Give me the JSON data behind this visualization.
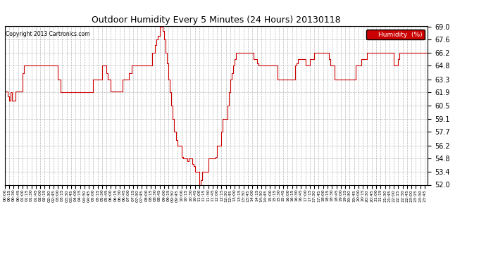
{
  "title": "Outdoor Humidity Every 5 Minutes (24 Hours) 20130118",
  "copyright": "Copyright 2013 Cartronics.com",
  "legend_label": "Humidity  (%)",
  "legend_bg": "#cc0000",
  "legend_text_color": "#ffffff",
  "line_color": "#cc0000",
  "bg_color": "#ffffff",
  "grid_color": "#b0b0b0",
  "ylim": [
    52.0,
    69.0
  ],
  "yticks": [
    52.0,
    53.4,
    54.8,
    56.2,
    57.7,
    59.1,
    60.5,
    61.9,
    63.3,
    64.8,
    66.2,
    67.6,
    69.0
  ],
  "humidity_data": [
    62.0,
    62.0,
    61.5,
    61.0,
    61.9,
    61.0,
    61.0,
    62.0,
    62.0,
    62.0,
    62.0,
    62.0,
    64.0,
    64.8,
    64.8,
    64.8,
    64.8,
    64.8,
    64.8,
    64.8,
    64.8,
    64.8,
    64.8,
    64.8,
    64.8,
    64.8,
    64.8,
    64.8,
    64.8,
    64.8,
    64.8,
    64.8,
    64.8,
    64.8,
    64.8,
    64.8,
    63.3,
    63.3,
    61.9,
    61.9,
    61.9,
    61.9,
    61.9,
    61.9,
    61.9,
    61.9,
    61.9,
    61.9,
    61.9,
    61.9,
    61.9,
    61.9,
    61.9,
    61.9,
    61.9,
    61.9,
    61.9,
    61.9,
    61.9,
    61.9,
    63.3,
    63.3,
    63.3,
    63.3,
    63.3,
    63.3,
    64.8,
    64.8,
    64.8,
    64.0,
    63.3,
    63.3,
    62.0,
    62.0,
    62.0,
    62.0,
    62.0,
    62.0,
    62.0,
    62.0,
    63.3,
    63.3,
    63.3,
    63.3,
    64.0,
    64.0,
    64.8,
    64.8,
    64.8,
    64.8,
    64.8,
    64.8,
    64.8,
    64.8,
    64.8,
    64.8,
    64.8,
    64.8,
    64.8,
    64.8,
    66.2,
    66.2,
    67.0,
    67.6,
    68.0,
    69.0,
    69.0,
    68.5,
    67.6,
    66.2,
    65.0,
    63.3,
    61.9,
    60.5,
    59.1,
    57.7,
    56.8,
    56.2,
    56.2,
    56.2,
    55.0,
    54.8,
    54.8,
    54.8,
    54.5,
    54.8,
    54.8,
    54.2,
    54.0,
    53.4,
    53.4,
    53.4,
    52.0,
    52.5,
    53.4,
    53.4,
    53.4,
    53.4,
    54.8,
    54.8,
    54.8,
    54.8,
    54.8,
    55.0,
    56.2,
    56.2,
    56.2,
    57.7,
    59.1,
    59.1,
    59.1,
    60.5,
    61.9,
    63.3,
    64.0,
    64.8,
    65.5,
    66.2,
    66.2,
    66.2,
    66.2,
    66.2,
    66.2,
    66.2,
    66.2,
    66.2,
    66.2,
    66.2,
    66.2,
    65.5,
    65.5,
    65.0,
    64.8,
    64.8,
    64.8,
    64.8,
    64.8,
    64.8,
    64.8,
    64.8,
    64.8,
    64.8,
    64.8,
    64.8,
    64.8,
    63.3,
    63.3,
    63.3,
    63.3,
    63.3,
    63.3,
    63.3,
    63.3,
    63.3,
    63.3,
    63.3,
    63.3,
    64.8,
    65.0,
    65.5,
    65.5,
    65.5,
    65.5,
    65.5,
    64.8,
    64.8,
    64.8,
    65.5,
    65.5,
    65.5,
    66.2,
    66.2,
    66.2,
    66.2,
    66.2,
    66.2,
    66.2,
    66.2,
    66.2,
    66.2,
    65.5,
    64.8,
    64.8,
    64.8,
    63.3,
    63.3,
    63.3,
    63.3,
    63.3,
    63.3,
    63.3,
    63.3,
    63.3,
    63.3,
    63.3,
    63.3,
    63.3,
    63.3,
    64.8,
    64.8,
    64.8,
    64.8,
    65.5,
    65.5,
    65.5,
    65.5,
    66.2,
    66.2,
    66.2,
    66.2,
    66.2,
    66.2,
    66.2,
    66.2,
    66.2,
    66.2,
    66.2,
    66.2,
    66.2,
    66.2,
    66.2,
    66.2,
    66.2,
    66.2,
    64.8,
    64.8,
    64.8,
    65.5,
    66.2,
    66.2,
    66.2,
    66.2,
    66.2,
    66.2,
    66.2,
    66.2,
    66.2,
    66.2,
    66.2,
    66.2,
    66.2,
    66.2,
    66.2,
    66.2,
    66.2,
    66.2,
    66.2,
    66.2
  ]
}
